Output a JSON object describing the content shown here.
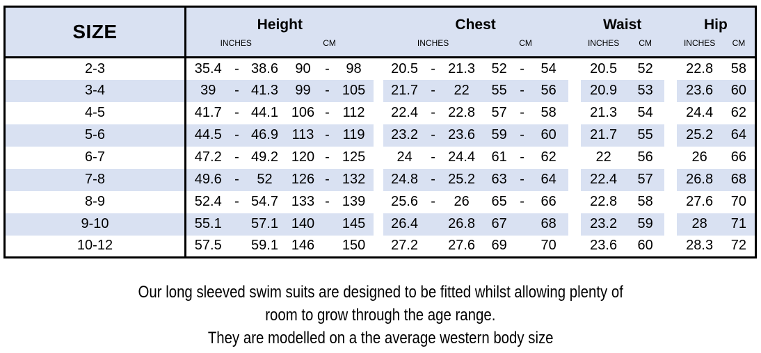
{
  "colors": {
    "band": "#d9e1f2",
    "border": "#000000"
  },
  "table": {
    "size_header": "SIZE",
    "groups": [
      {
        "label": "Height",
        "units": [
          "INCHES",
          "CM"
        ]
      },
      {
        "label": "Chest",
        "units": [
          "INCHES",
          "CM"
        ]
      },
      {
        "label": "Waist",
        "units": [
          "INCHES",
          "CM"
        ]
      },
      {
        "label": "Hip",
        "units": [
          "INCHES",
          "CM"
        ]
      }
    ],
    "rows": [
      {
        "size": "2-3",
        "height_in": [
          "35.4",
          "-",
          "38.6"
        ],
        "height_cm": [
          "90",
          "-",
          "98"
        ],
        "chest_in": [
          "20.5",
          "-",
          "21.3"
        ],
        "chest_cm": [
          "52",
          "-",
          "54"
        ],
        "waist_in": "20.5",
        "waist_cm": "52",
        "hip_in": "22.8",
        "hip_cm": "58"
      },
      {
        "size": "3-4",
        "height_in": [
          "39",
          "-",
          "41.3"
        ],
        "height_cm": [
          "99",
          "-",
          "105"
        ],
        "chest_in": [
          "21.7",
          "-",
          "22"
        ],
        "chest_cm": [
          "55",
          "-",
          "56"
        ],
        "waist_in": "20.9",
        "waist_cm": "53",
        "hip_in": "23.6",
        "hip_cm": "60"
      },
      {
        "size": "4-5",
        "height_in": [
          "41.7",
          "-",
          "44.1"
        ],
        "height_cm": [
          "106",
          "-",
          "112"
        ],
        "chest_in": [
          "22.4",
          "-",
          "22.8"
        ],
        "chest_cm": [
          "57",
          "-",
          "58"
        ],
        "waist_in": "21.3",
        "waist_cm": "54",
        "hip_in": "24.4",
        "hip_cm": "62"
      },
      {
        "size": "5-6",
        "height_in": [
          "44.5",
          "-",
          "46.9"
        ],
        "height_cm": [
          "113",
          "-",
          "119"
        ],
        "chest_in": [
          "23.2",
          "-",
          "23.6"
        ],
        "chest_cm": [
          "59",
          "-",
          "60"
        ],
        "waist_in": "21.7",
        "waist_cm": "55",
        "hip_in": "25.2",
        "hip_cm": "64"
      },
      {
        "size": "6-7",
        "height_in": [
          "47.2",
          "-",
          "49.2"
        ],
        "height_cm": [
          "120",
          "-",
          "125"
        ],
        "chest_in": [
          "24",
          "-",
          "24.4"
        ],
        "chest_cm": [
          "61",
          "-",
          "62"
        ],
        "waist_in": "22",
        "waist_cm": "56",
        "hip_in": "26",
        "hip_cm": "66"
      },
      {
        "size": "7-8",
        "height_in": [
          "49.6",
          "-",
          "52"
        ],
        "height_cm": [
          "126",
          "-",
          "132"
        ],
        "chest_in": [
          "24.8",
          "-",
          "25.2"
        ],
        "chest_cm": [
          "63",
          "-",
          "64"
        ],
        "waist_in": "22.4",
        "waist_cm": "57",
        "hip_in": "26.8",
        "hip_cm": "68"
      },
      {
        "size": "8-9",
        "height_in": [
          "52.4",
          "-",
          "54.7"
        ],
        "height_cm": [
          "133",
          "-",
          "139"
        ],
        "chest_in": [
          "25.6",
          "-",
          "26"
        ],
        "chest_cm": [
          "65",
          "-",
          "66"
        ],
        "waist_in": "22.8",
        "waist_cm": "58",
        "hip_in": "27.6",
        "hip_cm": "70"
      },
      {
        "size": "9-10",
        "height_in": [
          "55.1",
          "",
          "57.1"
        ],
        "height_cm": [
          "140",
          "",
          "145"
        ],
        "chest_in": [
          "26.4",
          "",
          "26.8"
        ],
        "chest_cm": [
          "67",
          "",
          "68"
        ],
        "waist_in": "23.2",
        "waist_cm": "59",
        "hip_in": "28",
        "hip_cm": "71"
      },
      {
        "size": "10-12",
        "height_in": [
          "57.5",
          "",
          "59.1"
        ],
        "height_cm": [
          "146",
          "",
          "150"
        ],
        "chest_in": [
          "27.2",
          "",
          "27.6"
        ],
        "chest_cm": [
          "69",
          "",
          "70"
        ],
        "waist_in": "23.6",
        "waist_cm": "60",
        "hip_in": "28.3",
        "hip_cm": "72"
      }
    ]
  },
  "footer": {
    "lines": [
      "Our long sleeved swim suits are designed to be fitted whilst allowing plenty of",
      "room to grow through the age range.",
      "They are modelled on a the average western body size"
    ]
  }
}
